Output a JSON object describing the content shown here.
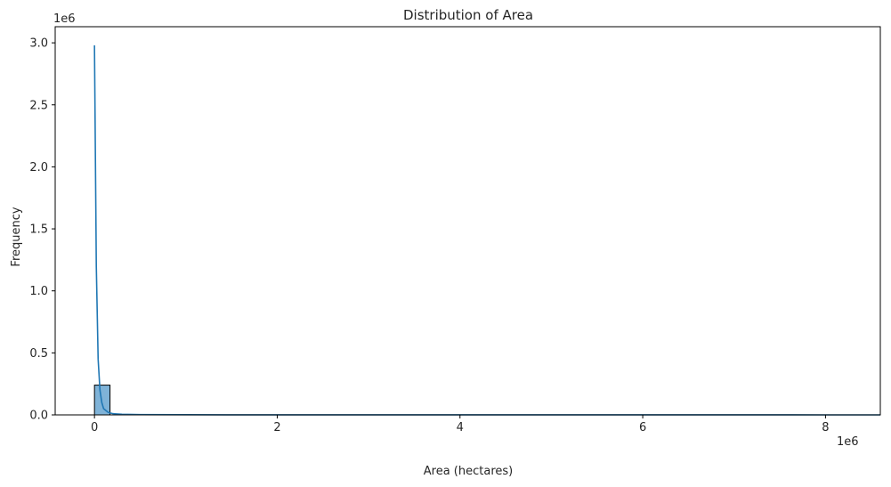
{
  "chart_data": {
    "type": "histogram",
    "title": "Distribution of Area",
    "xlabel": "Area (hectares)",
    "ylabel": "Frequency",
    "x_scale_label": "1e6",
    "y_scale_label": "1e6",
    "xlim": [
      -0.43,
      8.6
    ],
    "ylim": [
      0,
      3.13
    ],
    "x_ticks": [
      0,
      2,
      4,
      6,
      8
    ],
    "x_tick_labels": [
      "0",
      "2",
      "4",
      "6",
      "8"
    ],
    "y_ticks": [
      0.0,
      0.5,
      1.0,
      1.5,
      2.0,
      2.5,
      3.0
    ],
    "y_tick_labels": [
      "0.0",
      "0.5",
      "1.0",
      "1.5",
      "2.0",
      "2.5",
      "3.0"
    ],
    "grid": false,
    "bars": [
      {
        "x0": 0.0,
        "x1": 0.17,
        "count": 0.24
      }
    ],
    "kde": {
      "x": [
        0.0,
        0.02,
        0.04,
        0.06,
        0.08,
        0.1,
        0.15,
        0.2,
        0.3,
        0.5,
        1.0,
        2.0,
        4.0,
        6.0,
        8.0,
        8.6
      ],
      "y": [
        2.98,
        1.2,
        0.45,
        0.2,
        0.1,
        0.05,
        0.02,
        0.01,
        0.005,
        0.002,
        0.001,
        0.0005,
        0.0003,
        0.0002,
        0.0001,
        0.0001
      ]
    },
    "bar_color": "#7fb3d8",
    "line_color": "#1f77b4"
  }
}
